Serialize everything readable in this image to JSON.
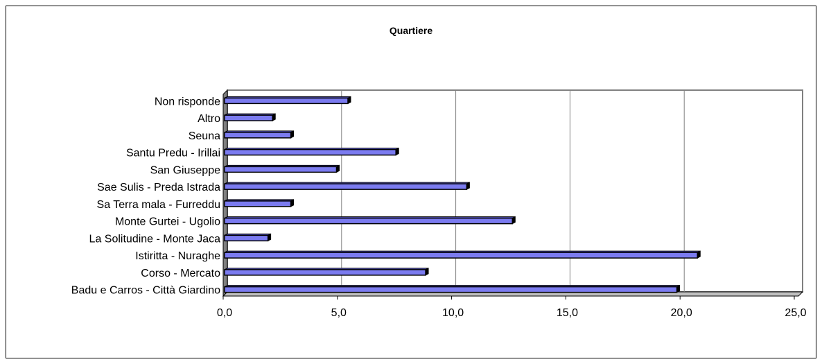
{
  "chart_data": {
    "type": "bar",
    "orientation": "horizontal",
    "title": "Quartiere",
    "xlabel": "",
    "ylabel": "",
    "xlim": [
      0,
      25
    ],
    "ticks": [
      "0,0",
      "5,0",
      "10,0",
      "15,0",
      "20,0",
      "25,0"
    ],
    "tick_values": [
      0,
      5,
      10,
      15,
      20,
      25
    ],
    "grid": true,
    "legend": "none",
    "bar_color": "#7b7bf0",
    "categories": [
      "Non risponde",
      "Altro",
      "Seuna",
      "Santu Predu - Irillai",
      "San Giuseppe",
      "Sae Sulis - Preda Istrada",
      "Sa Terra mala - Furreddu",
      "Monte Gurtei - Ugolio",
      "La Solitudine - Monte Jaca",
      "Istiritta - Nuraghe",
      "Corso - Mercato",
      "Badu e Carros - Città Giardino"
    ],
    "values": [
      5.4,
      2.1,
      2.9,
      7.5,
      4.9,
      10.6,
      2.9,
      12.6,
      1.9,
      20.7,
      8.8,
      19.8
    ]
  }
}
